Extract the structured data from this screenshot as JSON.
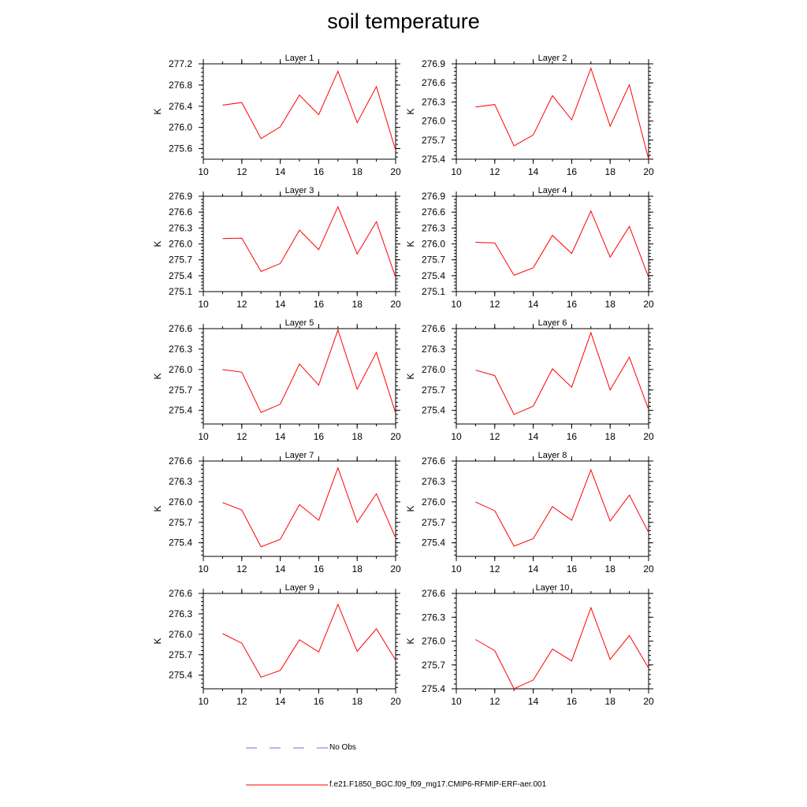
{
  "title": "soil temperature",
  "colors": {
    "model": "#ff0000",
    "obs": "#6a6aff",
    "axis": "#000000"
  },
  "legend": {
    "obs_label": "No Obs",
    "model_label": "f.e21.F1850_BGC.f09_f09_mg17.CMIP6-RFMIP-ERF-aer.001"
  },
  "chart_data": [
    {
      "type": "line",
      "title": "Layer 1",
      "ylabel": "K",
      "xlim": [
        10,
        20
      ],
      "xticks": [
        10,
        12,
        14,
        16,
        18,
        20
      ],
      "xtick_labels": [
        "10",
        "12",
        "14",
        "16",
        "18",
        "20"
      ],
      "ylim": [
        275.4,
        277.2
      ],
      "yticks": [
        275.6,
        276.0,
        276.4,
        276.8,
        277.2
      ],
      "ytick_labels": [
        "275.6",
        "276.0",
        "276.4",
        "276.8",
        "277.2"
      ],
      "series": [
        {
          "x": [
            11,
            12,
            13,
            14,
            15,
            16,
            17,
            18,
            19,
            20
          ],
          "values": [
            276.42,
            276.47,
            275.79,
            276.01,
            276.61,
            276.24,
            277.06,
            276.09,
            276.77,
            275.57
          ]
        }
      ]
    },
    {
      "type": "line",
      "title": "Layer 2",
      "ylabel": "K",
      "xlim": [
        10,
        20
      ],
      "xticks": [
        10,
        12,
        14,
        16,
        18,
        20
      ],
      "xtick_labels": [
        "10",
        "12",
        "14",
        "16",
        "18",
        "20"
      ],
      "ylim": [
        275.4,
        276.9
      ],
      "yticks": [
        275.4,
        275.7,
        276.0,
        276.3,
        276.6,
        276.9
      ],
      "ytick_labels": [
        "275.4",
        "275.7",
        "276.0",
        "276.3",
        "276.6",
        "276.9"
      ],
      "series": [
        {
          "x": [
            11,
            12,
            13,
            14,
            15,
            16,
            17,
            18,
            19,
            20
          ],
          "values": [
            276.22,
            276.26,
            275.61,
            275.78,
            276.4,
            276.02,
            276.83,
            275.92,
            276.57,
            275.4
          ]
        }
      ]
    },
    {
      "type": "line",
      "title": "Layer 3",
      "ylabel": "K",
      "xlim": [
        10,
        20
      ],
      "xticks": [
        10,
        12,
        14,
        16,
        18,
        20
      ],
      "xtick_labels": [
        "10",
        "12",
        "14",
        "16",
        "18",
        "20"
      ],
      "ylim": [
        275.1,
        276.9
      ],
      "yticks": [
        275.1,
        275.4,
        275.7,
        276.0,
        276.3,
        276.6,
        276.9
      ],
      "ytick_labels": [
        "275.1",
        "275.4",
        "275.7",
        "276.0",
        "276.3",
        "276.6",
        "276.9"
      ],
      "series": [
        {
          "x": [
            11,
            12,
            13,
            14,
            15,
            16,
            17,
            18,
            19,
            20
          ],
          "values": [
            276.1,
            276.11,
            275.48,
            275.63,
            276.26,
            275.89,
            276.7,
            275.81,
            276.42,
            275.37
          ]
        }
      ]
    },
    {
      "type": "line",
      "title": "Layer 4",
      "ylabel": "K",
      "xlim": [
        10,
        20
      ],
      "xticks": [
        10,
        12,
        14,
        16,
        18,
        20
      ],
      "xtick_labels": [
        "10",
        "12",
        "14",
        "16",
        "18",
        "20"
      ],
      "ylim": [
        275.1,
        276.9
      ],
      "yticks": [
        275.1,
        275.4,
        275.7,
        276.0,
        276.3,
        276.6,
        276.9
      ],
      "ytick_labels": [
        "275.1",
        "275.4",
        "275.7",
        "276.0",
        "276.3",
        "276.6",
        "276.9"
      ],
      "series": [
        {
          "x": [
            11,
            12,
            13,
            14,
            15,
            16,
            17,
            18,
            19,
            20
          ],
          "values": [
            276.03,
            276.02,
            275.41,
            275.55,
            276.16,
            275.82,
            276.62,
            275.75,
            276.33,
            275.37
          ]
        }
      ]
    },
    {
      "type": "line",
      "title": "Layer 5",
      "ylabel": "K",
      "xlim": [
        10,
        20
      ],
      "xticks": [
        10,
        12,
        14,
        16,
        18,
        20
      ],
      "xtick_labels": [
        "10",
        "12",
        "14",
        "16",
        "18",
        "20"
      ],
      "ylim": [
        275.2,
        276.6
      ],
      "yticks": [
        275.4,
        275.7,
        276.0,
        276.3,
        276.6
      ],
      "ytick_labels": [
        "275.4",
        "275.7",
        "276.0",
        "276.3",
        "276.6"
      ],
      "series": [
        {
          "x": [
            11,
            12,
            13,
            14,
            15,
            16,
            17,
            18,
            19,
            20
          ],
          "values": [
            276.0,
            275.96,
            275.37,
            275.49,
            276.08,
            275.77,
            276.58,
            275.71,
            276.25,
            275.36
          ]
        }
      ]
    },
    {
      "type": "line",
      "title": "Layer 6",
      "ylabel": "K",
      "xlim": [
        10,
        20
      ],
      "xticks": [
        10,
        12,
        14,
        16,
        18,
        20
      ],
      "xtick_labels": [
        "10",
        "12",
        "14",
        "16",
        "18",
        "20"
      ],
      "ylim": [
        275.2,
        276.6
      ],
      "yticks": [
        275.4,
        275.7,
        276.0,
        276.3,
        276.6
      ],
      "ytick_labels": [
        "275.4",
        "275.7",
        "276.0",
        "276.3",
        "276.6"
      ],
      "series": [
        {
          "x": [
            11,
            12,
            13,
            14,
            15,
            16,
            17,
            18,
            19,
            20
          ],
          "values": [
            275.99,
            275.91,
            275.34,
            275.46,
            276.01,
            275.74,
            276.54,
            275.7,
            276.18,
            275.41
          ]
        }
      ]
    },
    {
      "type": "line",
      "title": "Layer 7",
      "ylabel": "K",
      "xlim": [
        10,
        20
      ],
      "xticks": [
        10,
        12,
        14,
        16,
        18,
        20
      ],
      "xtick_labels": [
        "10",
        "12",
        "14",
        "16",
        "18",
        "20"
      ],
      "ylim": [
        275.2,
        276.6
      ],
      "yticks": [
        275.4,
        275.7,
        276.0,
        276.3,
        276.6
      ],
      "ytick_labels": [
        "275.4",
        "275.7",
        "276.0",
        "276.3",
        "276.6"
      ],
      "series": [
        {
          "x": [
            11,
            12,
            13,
            14,
            15,
            16,
            17,
            18,
            19,
            20
          ],
          "values": [
            275.99,
            275.88,
            275.34,
            275.45,
            275.96,
            275.73,
            276.5,
            275.7,
            276.12,
            275.47
          ]
        }
      ]
    },
    {
      "type": "line",
      "title": "Layer 8",
      "ylabel": "K",
      "xlim": [
        10,
        20
      ],
      "xticks": [
        10,
        12,
        14,
        16,
        18,
        20
      ],
      "xtick_labels": [
        "10",
        "12",
        "14",
        "16",
        "18",
        "20"
      ],
      "ylim": [
        275.2,
        276.6
      ],
      "yticks": [
        275.4,
        275.7,
        276.0,
        276.3,
        276.6
      ],
      "ytick_labels": [
        "275.4",
        "275.7",
        "276.0",
        "276.3",
        "276.6"
      ],
      "series": [
        {
          "x": [
            11,
            12,
            13,
            14,
            15,
            16,
            17,
            18,
            19,
            20
          ],
          "values": [
            276.0,
            275.87,
            275.35,
            275.46,
            275.93,
            275.73,
            276.47,
            275.72,
            276.1,
            275.55
          ]
        }
      ]
    },
    {
      "type": "line",
      "title": "Layer 9",
      "ylabel": "K",
      "xlim": [
        10,
        20
      ],
      "xticks": [
        10,
        12,
        14,
        16,
        18,
        20
      ],
      "xtick_labels": [
        "10",
        "12",
        "14",
        "16",
        "18",
        "20"
      ],
      "ylim": [
        275.2,
        276.6
      ],
      "yticks": [
        275.4,
        275.7,
        276.0,
        276.3,
        276.6
      ],
      "ytick_labels": [
        "275.4",
        "275.7",
        "276.0",
        "276.3",
        "276.6"
      ],
      "series": [
        {
          "x": [
            11,
            12,
            13,
            14,
            15,
            16,
            17,
            18,
            19,
            20
          ],
          "values": [
            276.01,
            275.87,
            275.37,
            275.47,
            275.92,
            275.74,
            276.44,
            275.75,
            276.08,
            275.62
          ]
        }
      ]
    },
    {
      "type": "line",
      "title": "Layer 10",
      "ylabel": "K",
      "xlim": [
        10,
        20
      ],
      "xticks": [
        10,
        12,
        14,
        16,
        18,
        20
      ],
      "xtick_labels": [
        "10",
        "12",
        "14",
        "16",
        "18",
        "20"
      ],
      "ylim": [
        275.4,
        276.6
      ],
      "yticks": [
        275.4,
        275.7,
        276.0,
        276.3,
        276.6
      ],
      "ytick_labels": [
        "275.4",
        "275.7",
        "276.0",
        "276.3",
        "276.6"
      ],
      "series": [
        {
          "x": [
            11,
            12,
            13,
            14,
            15,
            16,
            17,
            18,
            19,
            20
          ],
          "values": [
            276.02,
            275.88,
            275.4,
            275.51,
            275.9,
            275.75,
            276.42,
            275.77,
            276.07,
            275.66
          ]
        }
      ]
    }
  ]
}
